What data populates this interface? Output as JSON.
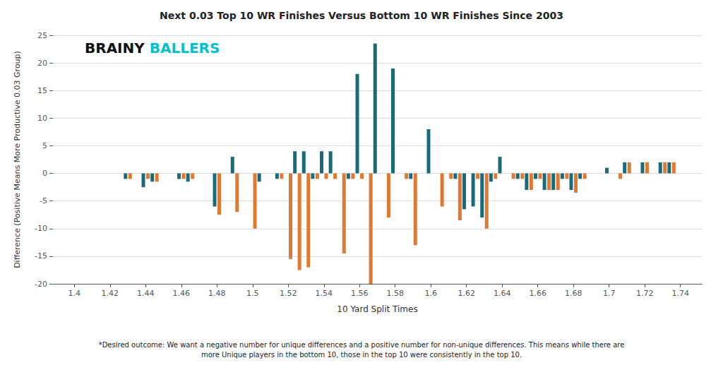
{
  "chart_data": {
    "type": "bar",
    "title": "Next 0.03 Top 10 WR Finishes Versus Bottom 10 WR Finishes Since 2003",
    "x_label": "10 Yard Split Times",
    "y_label": "Difference (Positive Means More Productive 0.03 Group)",
    "footnote": "*Desired outcome: We want a negative number for unique differences and a positive number for non-unique differences. This means while there are\nmore Unique players in the bottom 10, those in the top 10 were consistently in the top 10.",
    "annotations": [
      {
        "text": "BRAINY",
        "color": "#111111"
      },
      {
        "text": "BALLERS",
        "color": "#00c0d4"
      }
    ],
    "x": [
      1.43,
      1.44,
      1.445,
      1.46,
      1.465,
      1.48,
      1.49,
      1.5,
      1.505,
      1.515,
      1.52,
      1.525,
      1.53,
      1.535,
      1.54,
      1.545,
      1.55,
      1.555,
      1.56,
      1.565,
      1.57,
      1.575,
      1.58,
      1.585,
      1.59,
      1.6,
      1.605,
      1.61,
      1.615,
      1.62,
      1.625,
      1.63,
      1.635,
      1.64,
      1.645,
      1.65,
      1.655,
      1.66,
      1.665,
      1.67,
      1.675,
      1.68,
      1.685,
      1.7,
      1.705,
      1.71,
      1.715,
      1.72,
      1.725,
      1.73,
      1.735
    ],
    "series": [
      {
        "color": "#1a6b7a",
        "values": [
          -1.0,
          -2.5,
          -1.5,
          -1.0,
          -1.5,
          -6.0,
          3.0,
          0.0,
          -1.5,
          -1.0,
          0.0,
          4.0,
          4.0,
          -1.0,
          4.0,
          4.0,
          0.0,
          -1.0,
          18.0,
          0.0,
          23.5,
          0.0,
          19.0,
          0.0,
          -1.0,
          8.0,
          0.0,
          0.0,
          -1.0,
          -6.5,
          -6.0,
          -8.0,
          -1.5,
          3.0,
          0.0,
          -1.0,
          -3.0,
          -1.0,
          -3.0,
          -3.0,
          -1.0,
          -3.0,
          -1.0,
          1.0,
          0.0,
          2.0,
          0.0,
          2.0,
          0.0,
          2.0,
          2.0
        ]
      },
      {
        "color": "#e07830",
        "values": [
          -1.0,
          -1.0,
          -1.5,
          -1.0,
          -1.0,
          -7.5,
          -7.0,
          -10.0,
          0.0,
          -1.0,
          -15.5,
          -17.5,
          -17.0,
          -1.0,
          -1.0,
          -1.0,
          -14.5,
          -1.0,
          -1.0,
          -20.0,
          0.0,
          -8.0,
          0.0,
          -1.0,
          -13.0,
          0.0,
          -6.0,
          -1.0,
          -8.5,
          0.0,
          -1.0,
          -10.0,
          -1.0,
          0.0,
          -1.0,
          -1.0,
          -3.0,
          -1.0,
          -3.0,
          -3.0,
          -1.0,
          -3.5,
          -1.0,
          0.0,
          -1.0,
          2.0,
          0.0,
          2.0,
          0.0,
          2.0,
          2.0
        ]
      }
    ],
    "xlim": [
      1.388,
      1.752
    ],
    "ylim": [
      -20,
      25
    ],
    "xticks": [
      1.4,
      1.42,
      1.44,
      1.46,
      1.48,
      1.5,
      1.52,
      1.54,
      1.56,
      1.58,
      1.6,
      1.62,
      1.64,
      1.66,
      1.68,
      1.7,
      1.72,
      1.74
    ],
    "yticks": [
      -20,
      -15,
      -10,
      -5,
      0,
      5,
      10,
      15,
      20,
      25
    ],
    "grid": "y"
  }
}
